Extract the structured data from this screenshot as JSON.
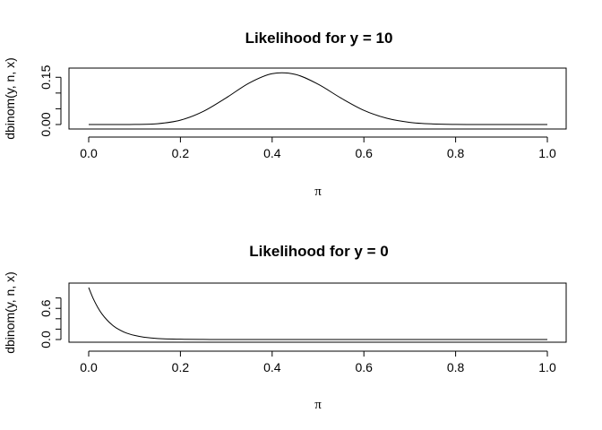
{
  "chart_data": [
    {
      "type": "line",
      "title": "Likelihood for y = 10",
      "xlabel": "π",
      "ylabel": "dbinom(y, n, x)",
      "xlim": [
        0,
        1
      ],
      "ylim": [
        0,
        0.165
      ],
      "x_ticks": [
        0,
        0.2,
        0.4,
        0.6,
        0.8,
        1
      ],
      "x_tick_labels": [
        "0.0",
        "0.2",
        "0.4",
        "0.6",
        "0.8",
        "1.0"
      ],
      "y_ticks": [
        0,
        0.05,
        0.1,
        0.15
      ],
      "y_tick_labels": [
        "0.00",
        "",
        "",
        "0.15"
      ],
      "grid": false,
      "series": [
        {
          "values_note_x": "pi",
          "x": [
            0,
            0.05,
            0.1,
            0.15,
            0.2,
            0.25,
            0.3,
            0.35,
            0.4,
            0.45,
            0.5,
            0.55,
            0.6,
            0.65,
            0.7,
            0.75,
            0.8,
            0.85,
            0.9,
            0.95,
            1
          ],
          "y": [
            0,
            0.0,
            0.0002,
            0.0026,
            0.0139,
            0.0417,
            0.0849,
            0.1318,
            0.1614,
            0.1593,
            0.1281,
            0.0841,
            0.0451,
            0.0198,
            0.0069,
            0.0018,
            0.0003,
            0.0,
            0.0,
            0.0,
            0
          ]
        }
      ]
    },
    {
      "type": "line",
      "title": "Likelihood for y = 0",
      "xlabel": "π",
      "ylabel": "dbinom(y, n, x)",
      "xlim": [
        0,
        1
      ],
      "ylim": [
        0,
        1
      ],
      "x_ticks": [
        0,
        0.2,
        0.4,
        0.6,
        0.8,
        1
      ],
      "x_tick_labels": [
        "0.0",
        "0.2",
        "0.4",
        "0.6",
        "0.8",
        "1.0"
      ],
      "y_ticks": [
        0,
        0.2,
        0.4,
        0.6,
        0.8
      ],
      "y_tick_labels": [
        "0.0",
        "",
        "",
        "0.6",
        ""
      ],
      "grid": false,
      "series": [
        {
          "x": [
            0,
            0.01,
            0.02,
            0.03,
            0.04,
            0.05,
            0.06,
            0.08,
            0.1,
            0.12,
            0.15,
            0.2,
            0.25,
            0.3,
            0.4,
            0.5,
            0.6,
            0.7,
            0.8,
            0.9,
            1
          ],
          "y": [
            1,
            0.785,
            0.615,
            0.479,
            0.375,
            0.29,
            0.224,
            0.133,
            0.079,
            0.046,
            0.02,
            0.0056,
            0.0014,
            0.0003,
            0,
            0,
            0,
            0,
            0,
            0,
            0
          ]
        }
      ]
    }
  ]
}
